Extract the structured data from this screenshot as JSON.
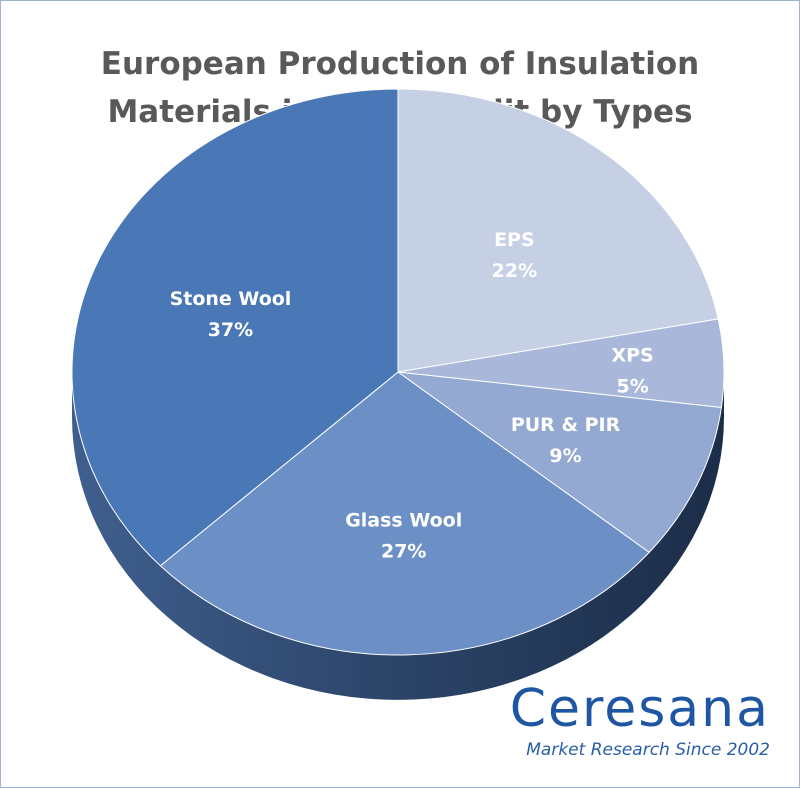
{
  "chart_data": {
    "type": "pie",
    "title_lines": [
      "European Production of Insulation",
      "Materials in 2024 – Split by Types"
    ],
    "slices": [
      {
        "label": "EPS",
        "value": 22,
        "value_label": "22%",
        "color": "#c6d0e5"
      },
      {
        "label": "XPS",
        "value": 5,
        "value_label": "5%",
        "color": "#a9b8da"
      },
      {
        "label": "PUR & PIR",
        "value": 9,
        "value_label": "9%",
        "color": "#94a9d2"
      },
      {
        "label": "Glass Wool",
        "value": 27,
        "value_label": "27%",
        "color": "#6c8fc5"
      },
      {
        "label": "Stone Wool",
        "value": 37,
        "value_label": "37%",
        "color": "#4a78b6"
      }
    ],
    "legend": "none",
    "style": "3d-tilted"
  },
  "brand": {
    "name": "Ceresana",
    "tagline": "Market Research Since 2002",
    "color": "#1f56a3"
  }
}
